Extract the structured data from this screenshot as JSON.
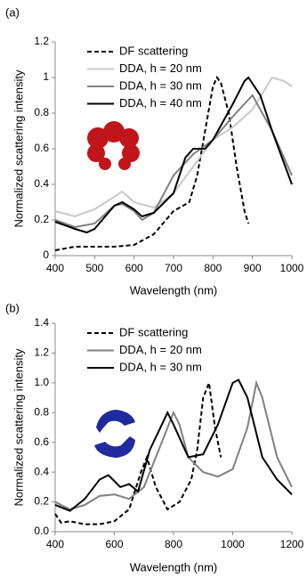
{
  "chart_data": [
    {
      "type": "line",
      "label": "(a)",
      "x_label": "Wavelength (nm)",
      "y_label": "Normalized scattering intensity",
      "xlim": [
        400,
        1000
      ],
      "xticks": [
        400,
        500,
        600,
        700,
        800,
        900,
        1000
      ],
      "ylim": [
        0,
        1.2
      ],
      "yticks": [
        0,
        0.2,
        0.4,
        0.6,
        0.8,
        1,
        1.2
      ],
      "series": [
        {
          "name": "DF scattering",
          "color": "#000000",
          "line_style": "dashed",
          "x": [
            400,
            450,
            500,
            550,
            600,
            650,
            700,
            740,
            760,
            780,
            800,
            810,
            820,
            840,
            860,
            880,
            890
          ],
          "values": [
            0.03,
            0.05,
            0.05,
            0.05,
            0.06,
            0.12,
            0.25,
            0.3,
            0.45,
            0.7,
            0.95,
            1.0,
            0.97,
            0.8,
            0.5,
            0.25,
            0.18
          ]
        },
        {
          "name": "DDA, h = 20 nm",
          "color": "#c8c8c8",
          "line_style": "solid",
          "x": [
            400,
            450,
            500,
            550,
            570,
            600,
            650,
            700,
            750,
            800,
            850,
            900,
            950,
            980,
            1000
          ],
          "values": [
            0.25,
            0.22,
            0.26,
            0.33,
            0.36,
            0.3,
            0.27,
            0.35,
            0.5,
            0.65,
            0.72,
            0.82,
            1.0,
            0.98,
            0.95
          ]
        },
        {
          "name": "DDA, h = 30 nm",
          "color": "#808080",
          "line_style": "solid",
          "x": [
            400,
            450,
            500,
            550,
            570,
            600,
            620,
            650,
            700,
            750,
            800,
            850,
            900,
            950,
            1000
          ],
          "values": [
            0.2,
            0.16,
            0.18,
            0.28,
            0.29,
            0.25,
            0.2,
            0.24,
            0.45,
            0.57,
            0.65,
            0.78,
            0.9,
            0.7,
            0.45
          ]
        },
        {
          "name": "DDA, h = 40 nm",
          "color": "#000000",
          "line_style": "solid",
          "x": [
            400,
            450,
            480,
            500,
            550,
            570,
            600,
            620,
            650,
            700,
            730,
            750,
            780,
            800,
            850,
            880,
            890,
            920,
            950,
            1000
          ],
          "values": [
            0.19,
            0.15,
            0.13,
            0.15,
            0.28,
            0.3,
            0.26,
            0.22,
            0.24,
            0.35,
            0.55,
            0.6,
            0.6,
            0.65,
            0.85,
            0.98,
            1.0,
            0.9,
            0.7,
            0.4
          ]
        }
      ]
    },
    {
      "type": "line",
      "label": "(b)",
      "x_label": "Wavelength (nm)",
      "y_label": "Normalized scattering intensity",
      "xlim": [
        400,
        1200
      ],
      "xticks": [
        400,
        600,
        800,
        1000,
        1200
      ],
      "ylim": [
        0,
        1.4
      ],
      "yticks": [
        {
          "value": 0,
          "label": "0.0"
        },
        0.2,
        0.4,
        0.6,
        0.8,
        {
          "value": 1,
          "label": "1.0"
        },
        1.2,
        1.4
      ],
      "series": [
        {
          "name": "DF scattering",
          "color": "#000000",
          "line_style": "dashed",
          "x": [
            400,
            420,
            450,
            500,
            550,
            600,
            650,
            690,
            710,
            740,
            780,
            820,
            860,
            880,
            900,
            920,
            940,
            960
          ],
          "values": [
            0.12,
            0.06,
            0.07,
            0.05,
            0.05,
            0.07,
            0.15,
            0.4,
            0.5,
            0.3,
            0.15,
            0.2,
            0.35,
            0.55,
            0.9,
            1.0,
            0.7,
            0.5
          ]
        },
        {
          "name": "DDA, h = 20 nm",
          "color": "#808080",
          "line_style": "solid",
          "x": [
            400,
            450,
            500,
            550,
            600,
            650,
            700,
            750,
            800,
            820,
            850,
            900,
            950,
            1000,
            1050,
            1080,
            1100,
            1150,
            1200
          ],
          "values": [
            0.2,
            0.15,
            0.18,
            0.24,
            0.25,
            0.22,
            0.3,
            0.55,
            0.8,
            0.72,
            0.5,
            0.4,
            0.37,
            0.42,
            0.7,
            1.0,
            0.9,
            0.5,
            0.3
          ]
        },
        {
          "name": "DDA, h = 30 nm",
          "color": "#000000",
          "line_style": "solid",
          "x": [
            400,
            450,
            500,
            550,
            580,
            620,
            650,
            680,
            720,
            780,
            800,
            850,
            900,
            950,
            1000,
            1020,
            1050,
            1100,
            1150,
            1200
          ],
          "values": [
            0.18,
            0.14,
            0.22,
            0.35,
            0.38,
            0.3,
            0.32,
            0.27,
            0.55,
            0.8,
            0.72,
            0.5,
            0.52,
            0.72,
            1.0,
            1.02,
            0.9,
            0.5,
            0.35,
            0.25
          ]
        }
      ]
    }
  ]
}
